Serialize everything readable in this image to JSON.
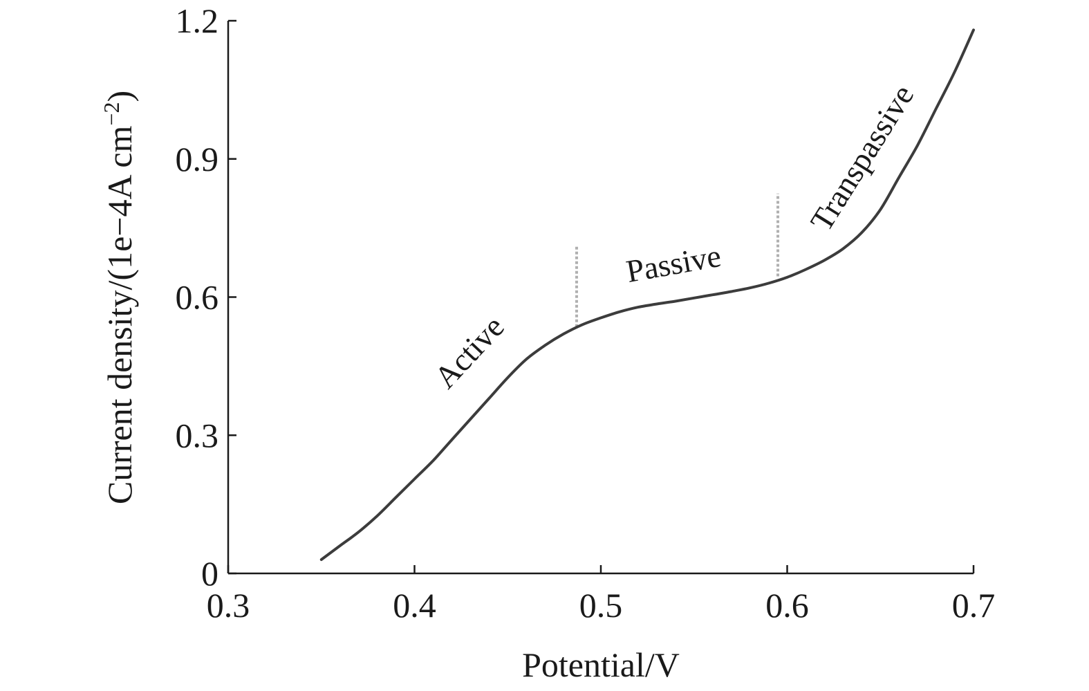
{
  "chart_data": {
    "type": "line",
    "title": "",
    "xlabel": "Potential/V",
    "ylabel": "Current density/(1e−4A cm",
    "ylabel_sup": "−2",
    "ylabel_close": ")",
    "xlim": [
      0.3,
      0.7
    ],
    "ylim": [
      0,
      1.2
    ],
    "x_ticks": [
      0.3,
      0.4,
      0.5,
      0.6,
      0.7
    ],
    "x_tick_labels": [
      "0.3",
      "0.4",
      "0.5",
      "0.6",
      "0.7"
    ],
    "y_ticks": [
      0,
      0.3,
      0.6,
      0.9,
      1.2
    ],
    "y_tick_labels": [
      "0",
      "0.3",
      "0.6",
      "0.9",
      "1.2"
    ],
    "grid": false,
    "legend": "none",
    "series": [
      {
        "color": "#3c3c3c",
        "x": [
          0.35,
          0.36,
          0.37,
          0.38,
          0.39,
          0.4,
          0.41,
          0.42,
          0.43,
          0.44,
          0.45,
          0.46,
          0.47,
          0.48,
          0.49,
          0.5,
          0.51,
          0.52,
          0.53,
          0.54,
          0.55,
          0.56,
          0.57,
          0.58,
          0.59,
          0.6,
          0.61,
          0.62,
          0.63,
          0.64,
          0.65,
          0.66,
          0.67,
          0.68,
          0.69,
          0.7
        ],
        "y": [
          0.03,
          0.06,
          0.09,
          0.125,
          0.165,
          0.205,
          0.245,
          0.29,
          0.335,
          0.38,
          0.425,
          0.465,
          0.495,
          0.52,
          0.54,
          0.555,
          0.568,
          0.578,
          0.585,
          0.591,
          0.598,
          0.605,
          0.612,
          0.62,
          0.63,
          0.643,
          0.66,
          0.68,
          0.705,
          0.74,
          0.79,
          0.86,
          0.93,
          1.01,
          1.09,
          1.18
        ]
      }
    ],
    "boundaries": [
      {
        "x": 0.487,
        "y_from": 0.535,
        "y_to": 0.71
      },
      {
        "x": 0.595,
        "y_from": 0.645,
        "y_to": 0.825
      }
    ],
    "annotations": [
      {
        "text": "Active",
        "x": 0.4335,
        "y": 0.465,
        "angle": -47
      },
      {
        "text": "Passive",
        "x": 0.54,
        "y": 0.65,
        "angle": -10
      },
      {
        "text": "Transpassive",
        "x": 0.645,
        "y": 0.89,
        "angle": -58
      }
    ]
  }
}
